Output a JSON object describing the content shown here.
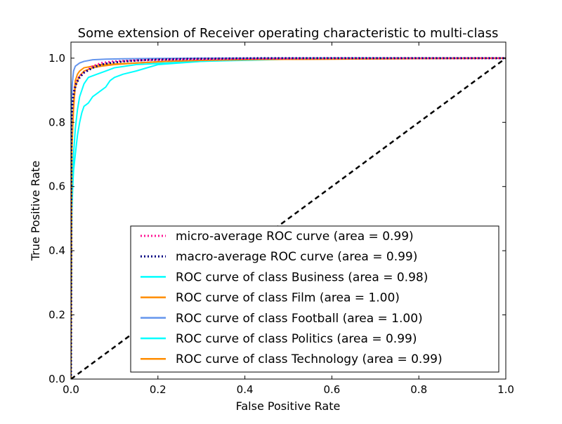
{
  "chart_data": {
    "type": "line",
    "title": "Some extension of Receiver operating characteristic to multi-class",
    "xlabel": "False Positive Rate",
    "ylabel": "True Positive Rate",
    "xlim": [
      0.0,
      1.0
    ],
    "ylim": [
      0.0,
      1.05
    ],
    "xticks": [
      "0.0",
      "0.2",
      "0.4",
      "0.6",
      "0.8",
      "1.0"
    ],
    "yticks": [
      "0.0",
      "0.2",
      "0.4",
      "0.6",
      "0.8",
      "1.0"
    ],
    "grid": false,
    "legend_position": "lower-right",
    "series": [
      {
        "name": "micro-average ROC curve (area = 0.99)",
        "color": "#ff1493",
        "style": "dotted",
        "x": [
          0,
          0.001,
          0.003,
          0.005,
          0.008,
          0.012,
          0.02,
          0.03,
          0.05,
          0.07,
          0.1,
          0.15,
          0.25,
          0.4,
          0.6,
          1.0
        ],
        "y": [
          0,
          0.78,
          0.84,
          0.88,
          0.905,
          0.925,
          0.945,
          0.955,
          0.975,
          0.985,
          0.99,
          0.993,
          0.996,
          0.998,
          1.0,
          1.0
        ]
      },
      {
        "name": "macro-average ROC curve (area = 0.99)",
        "color": "#000080",
        "style": "dotted",
        "x": [
          0,
          0.001,
          0.003,
          0.005,
          0.008,
          0.012,
          0.02,
          0.03,
          0.05,
          0.07,
          0.09,
          0.12,
          0.18,
          0.27,
          0.44,
          1.0
        ],
        "y": [
          0,
          0.8,
          0.85,
          0.88,
          0.9,
          0.92,
          0.94,
          0.955,
          0.97,
          0.98,
          0.985,
          0.99,
          0.995,
          0.998,
          1.0,
          1.0
        ]
      },
      {
        "name": "ROC curve of class Business (area = 0.98)",
        "color": "#00ffff",
        "style": "solid",
        "x": [
          0,
          0.002,
          0.004,
          0.006,
          0.01,
          0.015,
          0.02,
          0.025,
          0.03,
          0.04,
          0.05,
          0.06,
          0.07,
          0.08,
          0.09,
          0.1,
          0.12,
          0.15,
          0.2,
          0.3,
          0.44,
          1.0
        ],
        "y": [
          0,
          0.52,
          0.6,
          0.65,
          0.7,
          0.76,
          0.8,
          0.83,
          0.85,
          0.86,
          0.88,
          0.89,
          0.9,
          0.91,
          0.93,
          0.94,
          0.95,
          0.96,
          0.98,
          0.99,
          1.0,
          1.0
        ]
      },
      {
        "name": "ROC curve of class Film (area = 1.00)",
        "color": "#ff8c00",
        "style": "solid",
        "x": [
          0,
          0.002,
          0.004,
          0.006,
          0.008,
          0.01,
          0.015,
          0.02,
          0.03,
          0.05,
          0.07,
          0.1,
          0.15,
          0.22,
          0.3,
          0.43,
          1.0
        ],
        "y": [
          0,
          0.72,
          0.8,
          0.86,
          0.9,
          0.93,
          0.95,
          0.96,
          0.97,
          0.975,
          0.98,
          0.982,
          0.985,
          0.99,
          0.993,
          0.996,
          1.0
        ]
      },
      {
        "name": "ROC curve of class Football (area = 1.00)",
        "color": "#6495ed",
        "style": "solid",
        "x": [
          0,
          0.001,
          0.003,
          0.006,
          0.01,
          0.02,
          0.03,
          0.05,
          0.08,
          0.12,
          0.2,
          0.3,
          1.0
        ],
        "y": [
          0,
          0.84,
          0.92,
          0.96,
          0.975,
          0.985,
          0.99,
          0.995,
          0.997,
          0.998,
          0.999,
          1.0,
          1.0
        ]
      },
      {
        "name": "ROC curve of class Politics (area = 0.99)",
        "color": "#00ffff",
        "style": "solid",
        "x": [
          0,
          0.002,
          0.004,
          0.006,
          0.01,
          0.015,
          0.02,
          0.03,
          0.04,
          0.06,
          0.08,
          0.1,
          0.15,
          0.22,
          0.3,
          0.45,
          0.57,
          1.0
        ],
        "y": [
          0,
          0.55,
          0.62,
          0.7,
          0.78,
          0.84,
          0.88,
          0.92,
          0.94,
          0.95,
          0.96,
          0.97,
          0.98,
          0.985,
          0.99,
          0.995,
          1.0,
          1.0
        ]
      },
      {
        "name": "ROC curve of class Technology (area = 0.99)",
        "color": "#ff8c00",
        "style": "solid",
        "x": [
          0,
          0.002,
          0.004,
          0.006,
          0.008,
          0.01,
          0.015,
          0.02,
          0.03,
          0.05,
          0.07,
          0.1,
          0.15,
          0.22,
          0.3,
          0.43,
          1.0
        ],
        "y": [
          0,
          0.7,
          0.78,
          0.84,
          0.88,
          0.91,
          0.93,
          0.945,
          0.96,
          0.97,
          0.975,
          0.98,
          0.985,
          0.99,
          0.993,
          0.996,
          1.0
        ]
      }
    ],
    "reference_line": {
      "x": [
        0,
        1
      ],
      "y": [
        0,
        1
      ],
      "color": "#000000",
      "style": "dashed"
    }
  }
}
